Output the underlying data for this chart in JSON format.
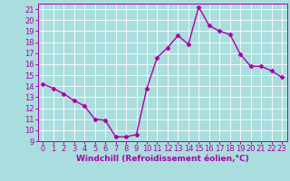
{
  "x": [
    0,
    1,
    2,
    3,
    4,
    5,
    6,
    7,
    8,
    9,
    10,
    11,
    12,
    13,
    14,
    15,
    16,
    17,
    18,
    19,
    20,
    21,
    22,
    23
  ],
  "y": [
    14.2,
    13.8,
    13.3,
    12.7,
    12.2,
    11.0,
    10.9,
    9.4,
    9.4,
    9.6,
    13.8,
    16.6,
    17.5,
    18.6,
    17.8,
    21.2,
    19.5,
    19.0,
    18.7,
    16.9,
    15.8,
    15.8,
    15.4,
    14.8
  ],
  "line_color": "#aa00aa",
  "marker": "D",
  "marker_size": 2.5,
  "xlabel": "Windchill (Refroidissement éolien,°C)",
  "xlim": [
    -0.5,
    23.5
  ],
  "ylim": [
    9,
    21.5
  ],
  "yticks": [
    9,
    10,
    11,
    12,
    13,
    14,
    15,
    16,
    17,
    18,
    19,
    20,
    21
  ],
  "xticks": [
    0,
    1,
    2,
    3,
    4,
    5,
    6,
    7,
    8,
    9,
    10,
    11,
    12,
    13,
    14,
    15,
    16,
    17,
    18,
    19,
    20,
    21,
    22,
    23
  ],
  "bg_color": "#aadddd",
  "grid_color": "#ffffff",
  "tick_color": "#aa00aa",
  "label_color": "#aa00aa",
  "font_size_xlabel": 6.5,
  "font_size_ticks": 6.0,
  "linewidth": 1.0
}
